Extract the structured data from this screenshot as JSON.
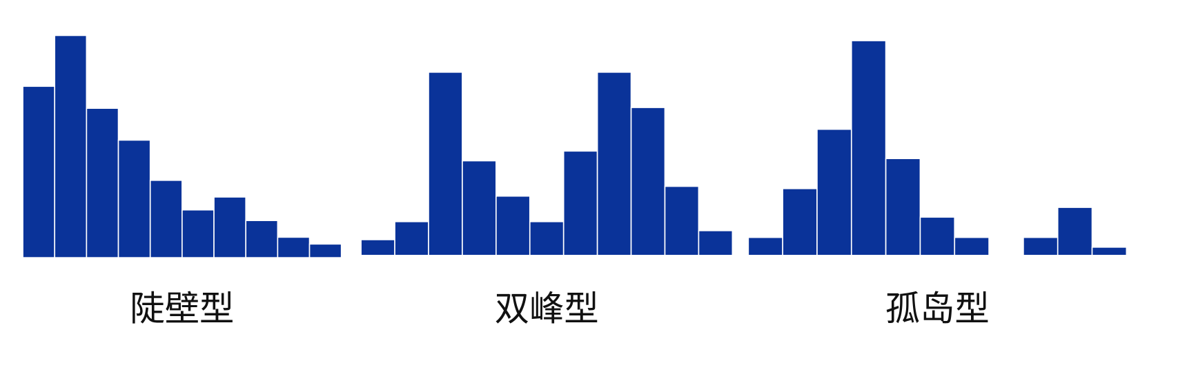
{
  "chart_data": [
    {
      "type": "bar",
      "title": "陡壁型",
      "values": [
        226,
        293,
        197,
        155,
        102,
        63,
        80,
        49,
        27,
        18
      ],
      "color": "#0a3399",
      "ylim": [
        0,
        300
      ]
    },
    {
      "type": "bar",
      "title": "双峰型",
      "values": [
        21,
        45,
        244,
        126,
        79,
        45,
        139,
        244,
        197,
        92,
        33
      ],
      "color": "#0a3399",
      "ylim": [
        0,
        300
      ]
    },
    {
      "type": "bar",
      "title": "孤岛型",
      "values": [
        24,
        89,
        168,
        286,
        129,
        51,
        24,
        null,
        24,
        64,
        11
      ],
      "color": "#0a3399",
      "ylim": [
        0,
        300
      ]
    }
  ]
}
